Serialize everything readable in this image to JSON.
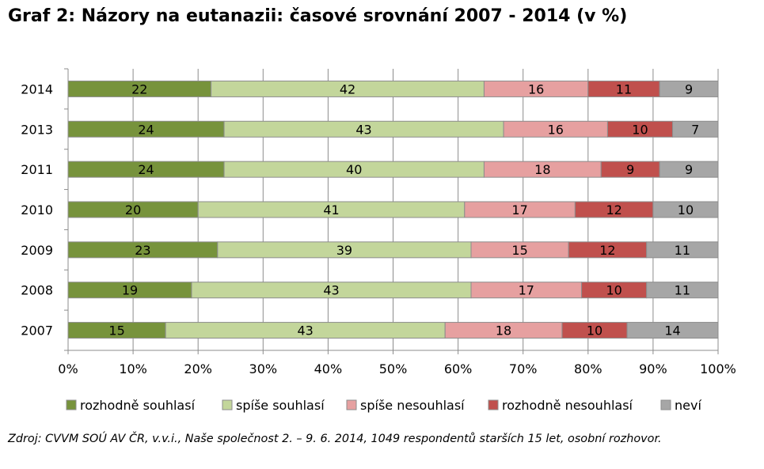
{
  "title": "Graf 2: Názory na eutanazii: časové srovnání 2007 - 2014 (v %)",
  "source": "Zdroj: CVVM SOÚ AV ČR, v.v.i., Naše společnost 2. – 9. 6. 2014, 1049 respondentů starších 15 let, osobní rozhovor.",
  "chart_data": {
    "type": "bar",
    "orientation": "horizontal",
    "stacked": "100%",
    "title": "Názory na eutanazii: časové srovnání 2007 - 2014 (v %)",
    "categories": [
      "2014",
      "2013",
      "2011",
      "2010",
      "2009",
      "2008",
      "2007"
    ],
    "series": [
      {
        "name": "rozhodně souhlasí",
        "color": "#77933c",
        "values": [
          22,
          24,
          24,
          20,
          23,
          19,
          15
        ]
      },
      {
        "name": "spíše souhlasí",
        "color": "#c3d69b",
        "values": [
          42,
          43,
          40,
          41,
          39,
          43,
          43
        ]
      },
      {
        "name": "spíše nesouhlasí",
        "color": "#e6a0a0",
        "values": [
          16,
          16,
          18,
          17,
          15,
          17,
          18
        ]
      },
      {
        "name": "rozhodně nesouhlasí",
        "color": "#c0504d",
        "values": [
          11,
          10,
          9,
          12,
          12,
          10,
          10
        ]
      },
      {
        "name": "neví",
        "color": "#a6a6a6",
        "values": [
          9,
          7,
          9,
          10,
          11,
          11,
          14
        ]
      }
    ],
    "xlim": [
      0,
      100
    ],
    "xticks": [
      "0%",
      "10%",
      "20%",
      "30%",
      "40%",
      "50%",
      "60%",
      "70%",
      "80%",
      "90%",
      "100%"
    ],
    "grid": true,
    "legend_position": "bottom"
  }
}
